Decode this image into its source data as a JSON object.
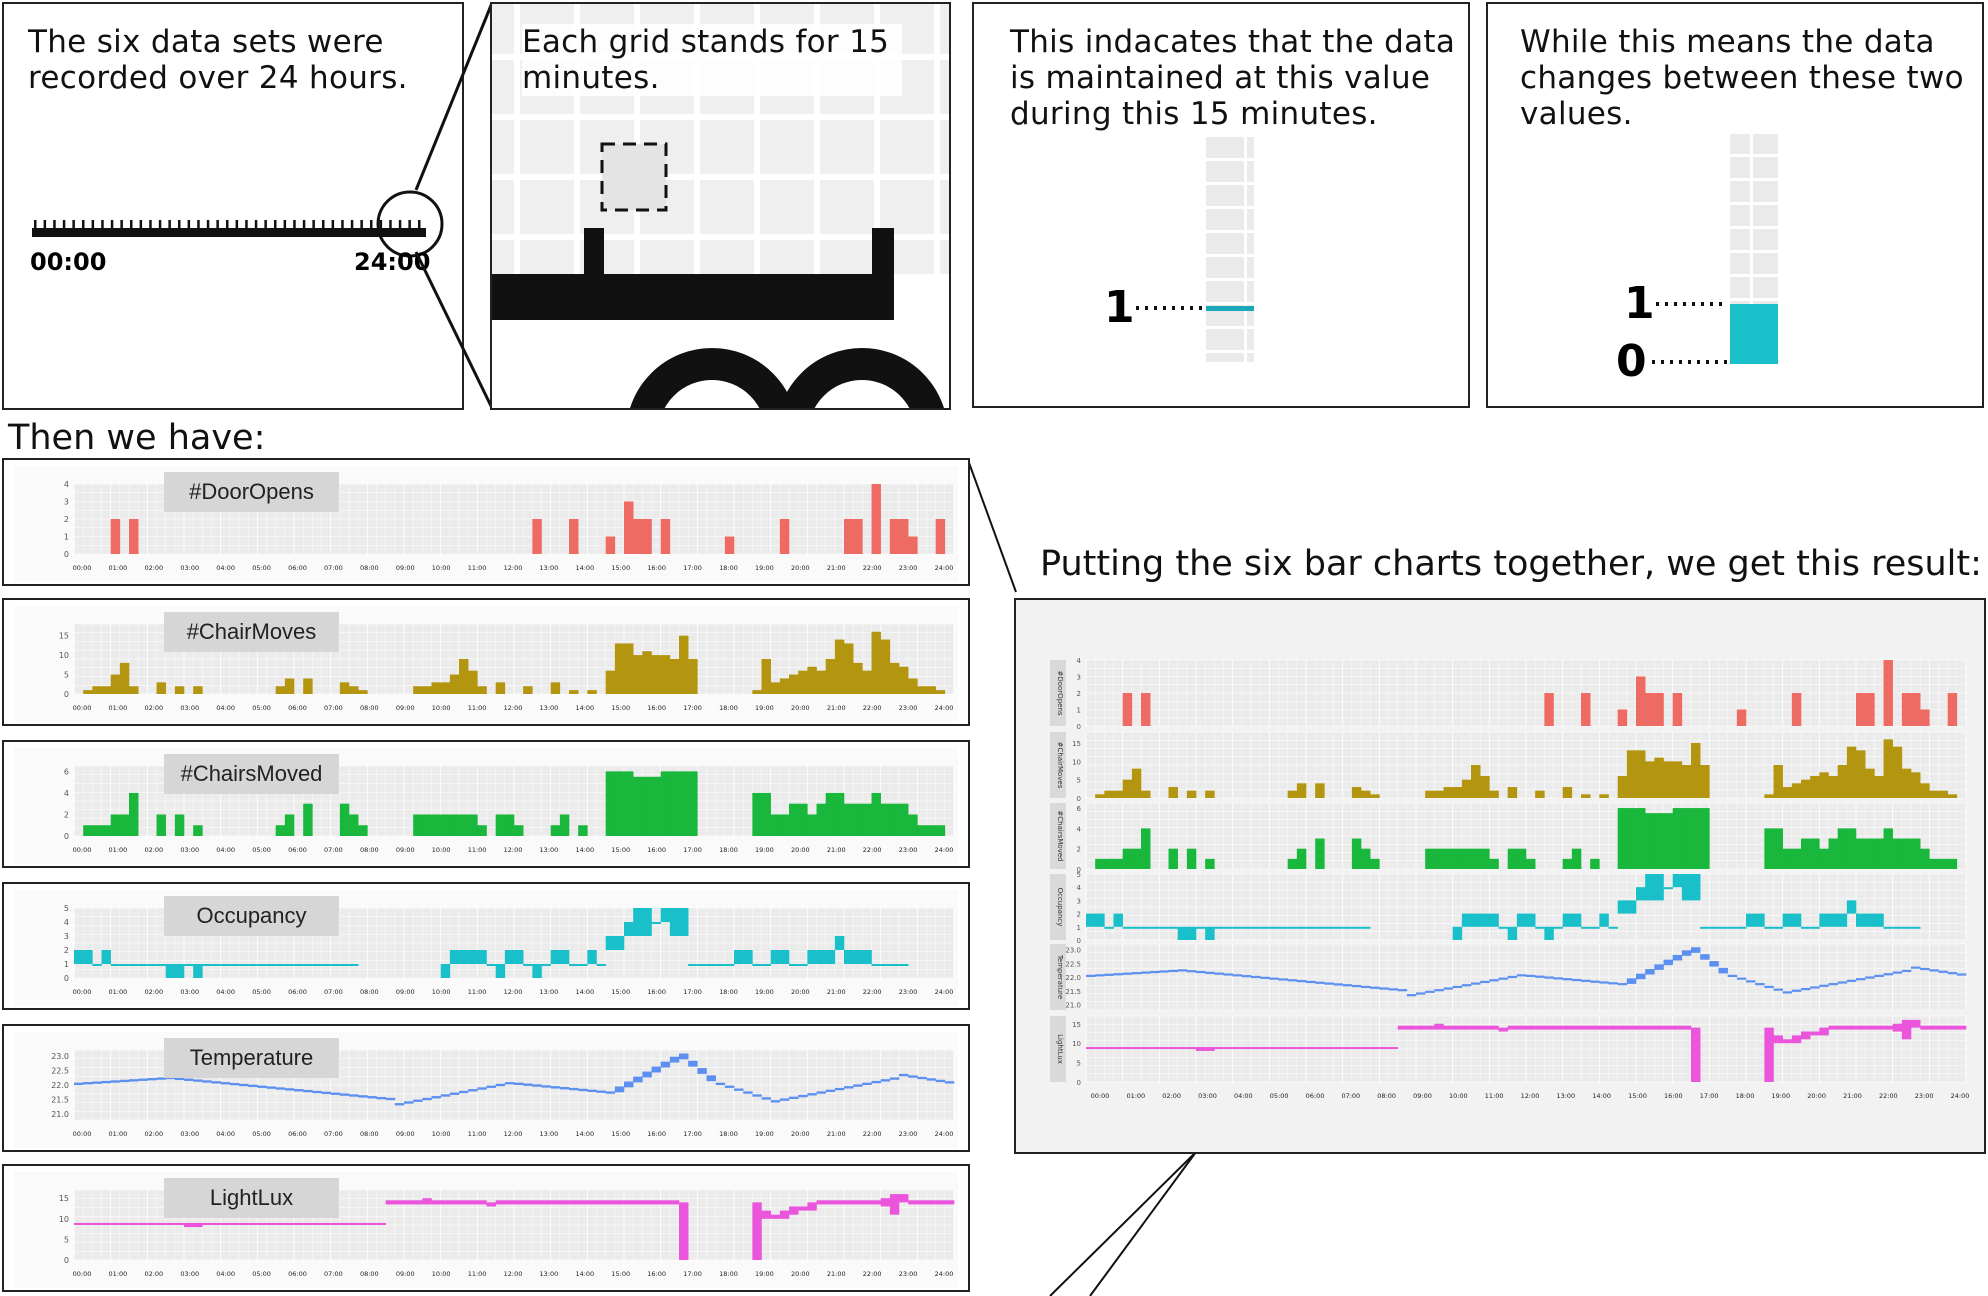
{
  "panels": {
    "p1_text": "The six data sets were recorded over 24 hours.",
    "p1_start": "00:00",
    "p1_end": "24:00",
    "p2_text": "Each grid stands for 15 minutes.",
    "p3_text": "This indacates that the data is maintained at this value during this 15 minutes.",
    "p3_label": "1",
    "p4_text": "While this means the data changes between these two values.",
    "p4_label_hi": "1",
    "p4_label_lo": "0"
  },
  "heading_left": "Then we have:",
  "heading_right": "Putting the six bar charts together, we get this result:",
  "time_ticks": [
    "00:00",
    "01:00",
    "02:00",
    "03:00",
    "04:00",
    "05:00",
    "06:00",
    "07:00",
    "08:00",
    "09:00",
    "10:00",
    "11:00",
    "12:00",
    "13:00",
    "14:00",
    "15:00",
    "16:00",
    "17:00",
    "18:00",
    "19:00",
    "20:00",
    "21:00",
    "22:00",
    "23:00",
    "24:00"
  ],
  "colors": {
    "doors": "#ee6b63",
    "chairmoves": "#b3950f",
    "chairsmoved": "#19b73c",
    "occupancy": "#19bfc9",
    "temperature": "#5b8ff0",
    "lightlux": "#ea55dc",
    "plotbg": "#ebebeb",
    "grid": "#ffffff"
  },
  "chart_data": [
    {
      "type": "bar",
      "title": "#DoorOpens",
      "short_title": "#DoorOpens",
      "ylim": [
        0,
        4
      ],
      "yticks": [
        "4",
        "3",
        "2",
        "1",
        "0"
      ],
      "series": [
        {
          "name": "#DoorOpens",
          "values": [
            0,
            0,
            0,
            0,
            0,
            0,
            0,
            0,
            0,
            0,
            0,
            0,
            0,
            0,
            0,
            0,
            0,
            0,
            0,
            0,
            0,
            0,
            0,
            0,
            0,
            0,
            0,
            0,
            0,
            0,
            0,
            0,
            0,
            0,
            0,
            0,
            0,
            0,
            0,
            0,
            0,
            0,
            0,
            0,
            0,
            0,
            0,
            0,
            0,
            0,
            0,
            0,
            0,
            0,
            0,
            0,
            0,
            0,
            0,
            0,
            0,
            0,
            0,
            0,
            0,
            0,
            0,
            0,
            0,
            0,
            0,
            0,
            0,
            0,
            0,
            0,
            0,
            0,
            0,
            0,
            0,
            0,
            0,
            0,
            0,
            0,
            0,
            0,
            0,
            0,
            0,
            0,
            0,
            0,
            0,
            0
          ]
        }
      ]
    },
    {
      "type": "bar",
      "title": "#ChairMoves",
      "short_title": "#ChairMoves",
      "ylim": [
        0,
        18
      ],
      "yticks": [
        "15",
        "10",
        "5",
        "0"
      ],
      "series": [
        {
          "name": "#ChairMoves",
          "values": []
        }
      ]
    },
    {
      "type": "bar",
      "title": "#ChairsMoved",
      "short_title": "#ChairsMoved",
      "ylim": [
        0,
        6.5
      ],
      "yticks": [
        "6",
        "4",
        "2",
        "0"
      ],
      "series": [
        {
          "name": "#ChairsMoved",
          "values": []
        }
      ]
    },
    {
      "type": "range",
      "title": "Occupancy",
      "short_title": "Occupancy",
      "ylim": [
        0,
        5
      ],
      "yticks": [
        "5",
        "4",
        "3",
        "2",
        "1",
        "0"
      ],
      "series": [
        {
          "name": "Occupancy",
          "values": []
        }
      ]
    },
    {
      "type": "range",
      "title": "Temperature",
      "short_title": "Temperature",
      "ylim": [
        20.8,
        23.2
      ],
      "yticks": [
        "23.0",
        "22.5",
        "22.0",
        "21.5",
        "21.0"
      ],
      "series": [
        {
          "name": "Temperature",
          "values": []
        }
      ]
    },
    {
      "type": "range",
      "title": "LightLux",
      "short_title": "LightLux",
      "ylim": [
        0,
        17
      ],
      "yticks": [
        "15",
        "10",
        "5",
        "0"
      ],
      "series": [
        {
          "name": "LightLux",
          "values": []
        }
      ]
    }
  ]
}
